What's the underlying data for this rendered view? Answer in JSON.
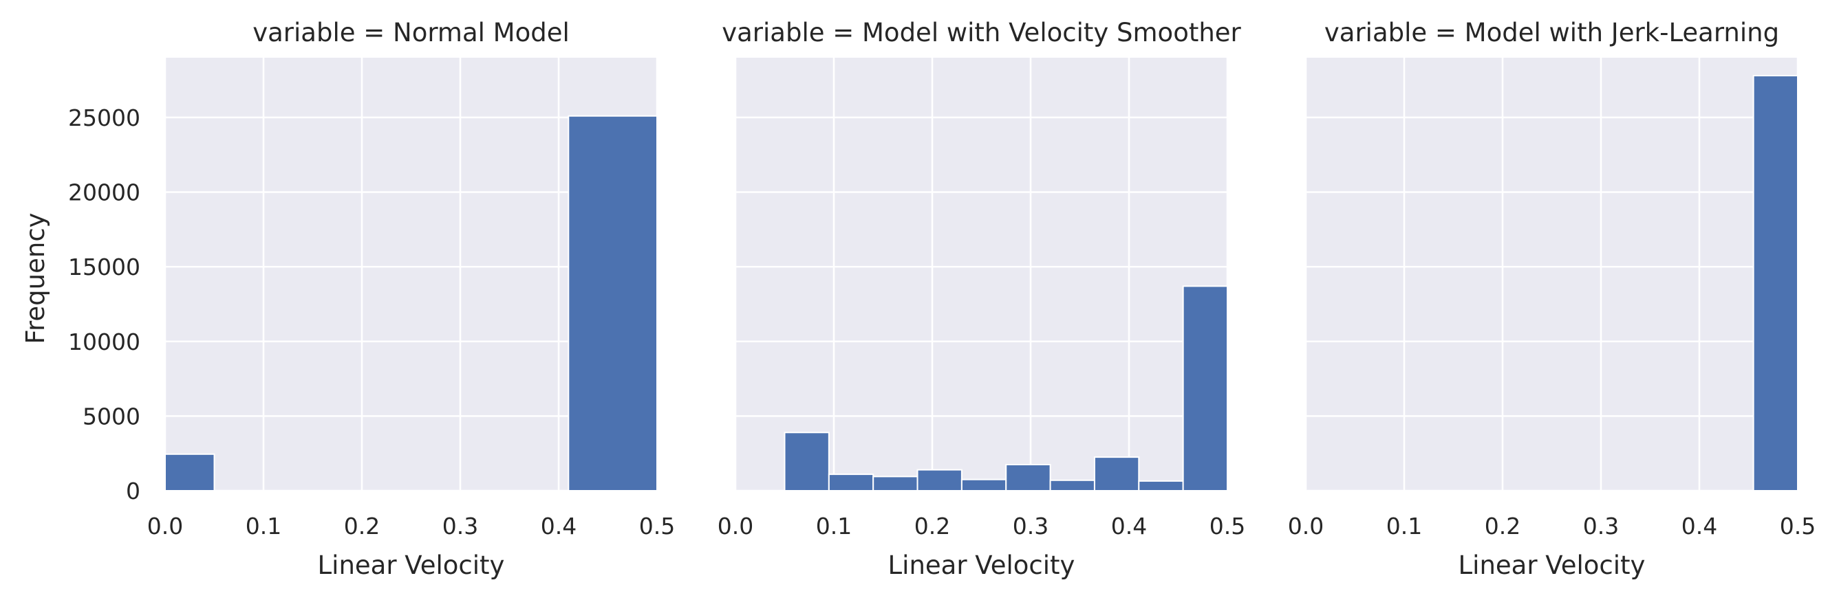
{
  "colors": {
    "panel_bg": "#EAEAF2",
    "grid": "#FFFFFF",
    "bar": "#4C72B0",
    "text": "#262626"
  },
  "chart_data": [
    {
      "type": "bar",
      "title": "variable = Normal Model",
      "xlabel": "Linear Velocity",
      "ylabel": "Frequency",
      "xlim": [
        0,
        0.5
      ],
      "ylim": [
        0,
        29000
      ],
      "xticks": [
        "0.0",
        "0.1",
        "0.2",
        "0.3",
        "0.4",
        "0.5"
      ],
      "yticks": [
        "0",
        "5000",
        "10000",
        "15000",
        "20000",
        "25000"
      ],
      "grid": true,
      "bins": [
        {
          "x0": 0.0,
          "x1": 0.05,
          "value": 2450
        },
        {
          "x0": 0.41,
          "x1": 0.5,
          "value": 25100
        }
      ]
    },
    {
      "type": "bar",
      "title": "variable = Model with Velocity Smoother",
      "xlabel": "Linear Velocity",
      "ylabel": "",
      "xlim": [
        0,
        0.5
      ],
      "ylim": [
        0,
        29000
      ],
      "xticks": [
        "0.0",
        "0.1",
        "0.2",
        "0.3",
        "0.4",
        "0.5"
      ],
      "yticks": [],
      "grid": true,
      "bins": [
        {
          "x0": 0.05,
          "x1": 0.095,
          "value": 3900
        },
        {
          "x0": 0.095,
          "x1": 0.14,
          "value": 1100
        },
        {
          "x0": 0.14,
          "x1": 0.185,
          "value": 950
        },
        {
          "x0": 0.185,
          "x1": 0.23,
          "value": 1400
        },
        {
          "x0": 0.23,
          "x1": 0.275,
          "value": 750
        },
        {
          "x0": 0.275,
          "x1": 0.32,
          "value": 1750
        },
        {
          "x0": 0.32,
          "x1": 0.365,
          "value": 700
        },
        {
          "x0": 0.365,
          "x1": 0.41,
          "value": 2250
        },
        {
          "x0": 0.41,
          "x1": 0.455,
          "value": 650
        },
        {
          "x0": 0.455,
          "x1": 0.5,
          "value": 13700
        }
      ]
    },
    {
      "type": "bar",
      "title": "variable = Model with Jerk-Learning",
      "xlabel": "Linear Velocity",
      "ylabel": "",
      "xlim": [
        0,
        0.5
      ],
      "ylim": [
        0,
        29000
      ],
      "xticks": [
        "0.0",
        "0.1",
        "0.2",
        "0.3",
        "0.4",
        "0.5"
      ],
      "yticks": [],
      "grid": true,
      "bins": [
        {
          "x0": 0.455,
          "x1": 0.5,
          "value": 27800
        }
      ]
    }
  ]
}
